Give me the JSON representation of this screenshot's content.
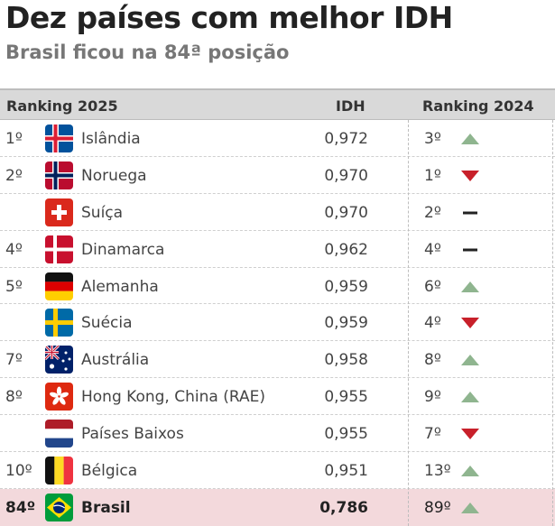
{
  "title": "Dez países com melhor IDH",
  "subtitle": "Brasil ficou na 84ª posição",
  "header": {
    "rank": "Ranking 2025",
    "idh": "IDH",
    "prev": "Ranking 2024"
  },
  "colors": {
    "up": "#8fb58f",
    "down": "#c8202a",
    "same": "#222222",
    "highlight": "#f3d9dc",
    "header": "#d9d9d9"
  },
  "rows": [
    {
      "rank": "1º",
      "country": "Islândia",
      "idh": "0,972",
      "prev": "3º",
      "trend": "up",
      "flag": "iceland-flag-icon"
    },
    {
      "rank": "2º",
      "country": "Noruega",
      "idh": "0,970",
      "prev": "1º",
      "trend": "down",
      "flag": "norway-flag-icon"
    },
    {
      "rank": "",
      "country": "Suíça",
      "idh": "0,970",
      "prev": "2º",
      "trend": "same",
      "flag": "switzerland-flag-icon"
    },
    {
      "rank": "4º",
      "country": "Dinamarca",
      "idh": "0,962",
      "prev": "4º",
      "trend": "same",
      "flag": "denmark-flag-icon"
    },
    {
      "rank": "5º",
      "country": "Alemanha",
      "idh": "0,959",
      "prev": "6º",
      "trend": "up",
      "flag": "germany-flag-icon"
    },
    {
      "rank": "",
      "country": "Suécia",
      "idh": "0,959",
      "prev": "4º",
      "trend": "down",
      "flag": "sweden-flag-icon"
    },
    {
      "rank": "7º",
      "country": "Austrália",
      "idh": "0,958",
      "prev": "8º",
      "trend": "up",
      "flag": "australia-flag-icon"
    },
    {
      "rank": "8º",
      "country": "Hong Kong, China (RAE)",
      "idh": "0,955",
      "prev": "9º",
      "trend": "up",
      "flag": "hong-kong-flag-icon"
    },
    {
      "rank": "",
      "country": "Países Baixos",
      "idh": "0,955",
      "prev": "7º",
      "trend": "down",
      "flag": "netherlands-flag-icon"
    },
    {
      "rank": "10º",
      "country": "Bélgica",
      "idh": "0,951",
      "prev": "13º",
      "trend": "up",
      "flag": "belgium-flag-icon"
    },
    {
      "rank": "84º",
      "country": "Brasil",
      "idh": "0,786",
      "prev": "89º",
      "trend": "up",
      "flag": "brazil-flag-icon",
      "highlight": true
    }
  ]
}
